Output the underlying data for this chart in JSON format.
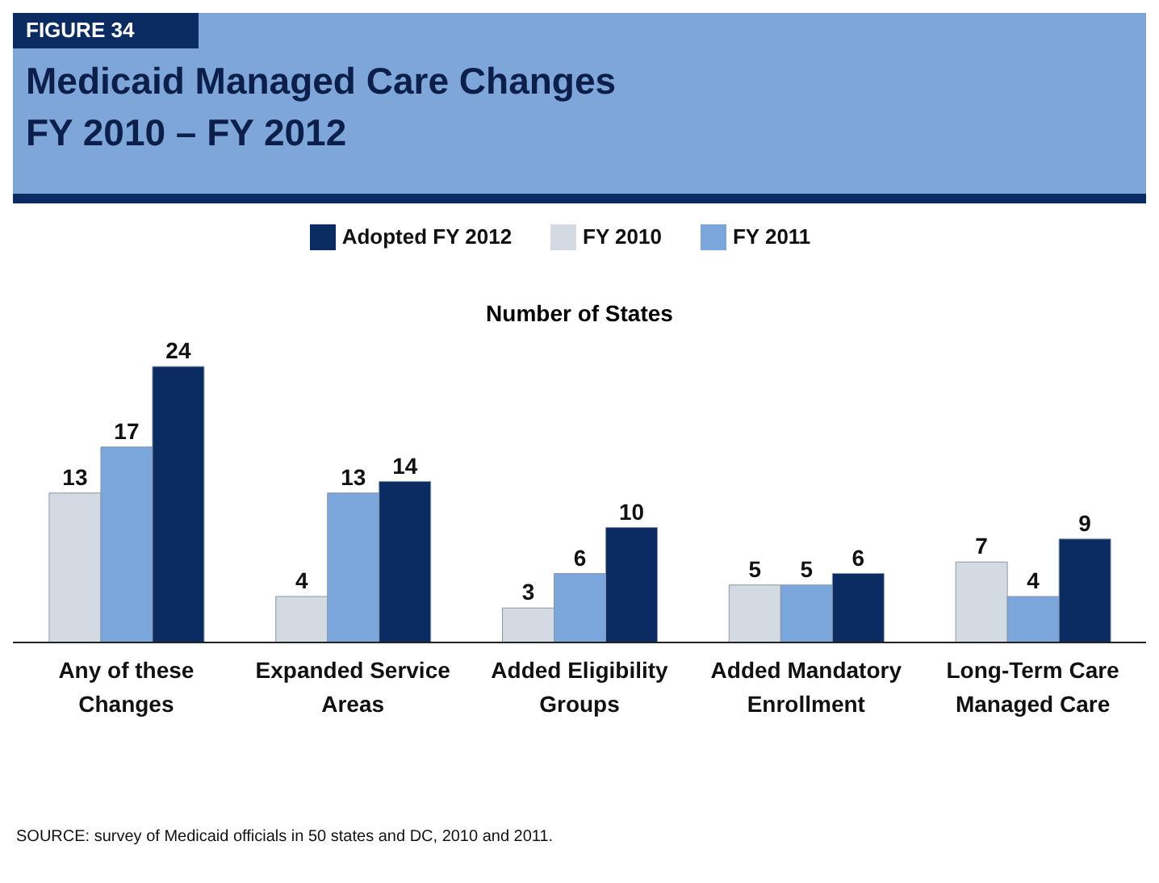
{
  "chart_data": {
    "type": "bar",
    "title": "Medicaid Managed Care Changes FY 2010 – FY 2012",
    "subtitle": "FIGURE 34",
    "ylabel": "Number of States",
    "categories": [
      "Any of these Changes",
      "Expanded Service Areas",
      "Added Eligibility Groups",
      "Added Mandatory Enrollment",
      "Long-Term Care Managed Care"
    ],
    "series": [
      {
        "name": "FY 2010",
        "color": "#d3dae2",
        "values": [
          13,
          4,
          3,
          5,
          7
        ]
      },
      {
        "name": "FY 2011",
        "color": "#7aa6dc",
        "values": [
          17,
          13,
          6,
          5,
          4
        ]
      },
      {
        "name": "Adopted  FY 2012",
        "color": "#0b2b63",
        "values": [
          24,
          14,
          10,
          6,
          9
        ]
      }
    ],
    "data_labels": true,
    "legend": "top",
    "grid": false,
    "annotations": [
      "SOURCE: survey of Medicaid officials in 50 states and DC, 2010 and 2011."
    ]
  }
}
